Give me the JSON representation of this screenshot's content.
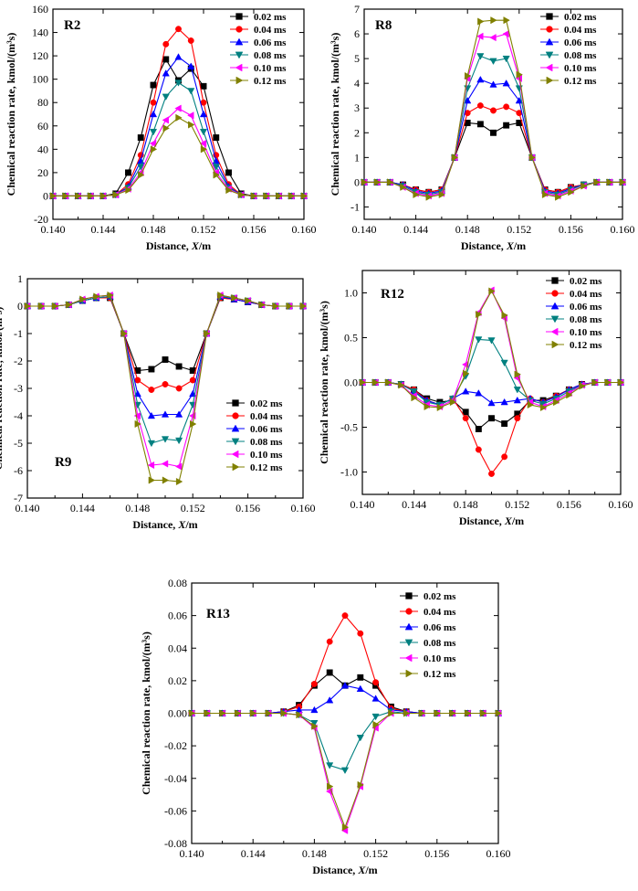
{
  "series_styles": [
    {
      "name": "0.02 ms",
      "color": "#000000",
      "marker": "square"
    },
    {
      "name": "0.04 ms",
      "color": "#ff0000",
      "marker": "circle"
    },
    {
      "name": "0.06 ms",
      "color": "#0000ff",
      "marker": "triangle-up"
    },
    {
      "name": "0.08 ms",
      "color": "#008080",
      "marker": "triangle-down"
    },
    {
      "name": "0.10 ms",
      "color": "#ff00ff",
      "marker": "triangle-left"
    },
    {
      "name": "0.12 ms",
      "color": "#808000",
      "marker": "triangle-right"
    }
  ],
  "chart_data": [
    {
      "id": "R2",
      "type": "line",
      "label": "R2",
      "xlabel_prefix": "Distance, ",
      "xlabel_var": "X",
      "xlabel_suffix": "/m",
      "ylabel": "Chemical reaction rate, kmol/(m³s)",
      "xlim": [
        0.14,
        0.16
      ],
      "ylim": [
        -20,
        160
      ],
      "xticks": [
        "0.140",
        "0.144",
        "0.148",
        "0.152",
        "0.156",
        "0.160"
      ],
      "yticks": [
        "-20",
        "0",
        "20",
        "40",
        "60",
        "80",
        "100",
        "120",
        "140",
        "160"
      ],
      "legend_position": "top-right",
      "x": [
        0.14,
        0.141,
        0.142,
        0.143,
        0.144,
        0.145,
        0.146,
        0.147,
        0.148,
        0.149,
        0.15,
        0.151,
        0.152,
        0.153,
        0.154,
        0.155,
        0.156,
        0.157,
        0.158,
        0.159,
        0.16
      ],
      "series": [
        {
          "name": "0.02 ms",
          "values": [
            0,
            0,
            0,
            0,
            0,
            2,
            20,
            50,
            95,
            117,
            99,
            109,
            94,
            50,
            20,
            2,
            0,
            0,
            0,
            0,
            0
          ]
        },
        {
          "name": "0.04 ms",
          "values": [
            0,
            0,
            0,
            0,
            0,
            1,
            10,
            35,
            80,
            130,
            143,
            133,
            80,
            35,
            10,
            1,
            0,
            0,
            0,
            0,
            0
          ]
        },
        {
          "name": "0.06 ms",
          "values": [
            0,
            0,
            0,
            0,
            0,
            1,
            8,
            30,
            70,
            105,
            119,
            111,
            70,
            30,
            8,
            1,
            0,
            0,
            0,
            0,
            0
          ]
        },
        {
          "name": "0.08 ms",
          "values": [
            0,
            0,
            0,
            0,
            0,
            1,
            7,
            25,
            55,
            85,
            97,
            90,
            55,
            25,
            7,
            1,
            0,
            0,
            0,
            0,
            0
          ]
        },
        {
          "name": "0.10 ms",
          "values": [
            0,
            0,
            0,
            0,
            0,
            1,
            6,
            20,
            45,
            65,
            75,
            69,
            45,
            20,
            6,
            1,
            0,
            0,
            0,
            0,
            0
          ]
        },
        {
          "name": "0.12 ms",
          "values": [
            0,
            0,
            0,
            0,
            0,
            1,
            5,
            18,
            40,
            58,
            67,
            61,
            40,
            18,
            5,
            1,
            0,
            0,
            0,
            0,
            0
          ]
        }
      ]
    },
    {
      "id": "R8",
      "type": "line",
      "label": "R8",
      "xlabel_prefix": "Distance, ",
      "xlabel_var": "X",
      "xlabel_suffix": "/m",
      "ylabel": "Chemical reaction rate, kmol/(m³s)",
      "xlim": [
        0.14,
        0.16
      ],
      "ylim": [
        -1.5,
        7
      ],
      "xticks": [
        "0.140",
        "0.144",
        "0.148",
        "0.152",
        "0.156",
        "0.160"
      ],
      "yticks": [
        "-1",
        "0",
        "1",
        "2",
        "3",
        "4",
        "5",
        "6",
        "7"
      ],
      "legend_position": "top-right",
      "x": [
        0.14,
        0.141,
        0.142,
        0.143,
        0.144,
        0.145,
        0.146,
        0.147,
        0.148,
        0.149,
        0.15,
        0.151,
        0.152,
        0.153,
        0.154,
        0.155,
        0.156,
        0.157,
        0.158,
        0.159,
        0.16
      ],
      "series": [
        {
          "name": "0.02 ms",
          "values": [
            0,
            0,
            0,
            -0.1,
            -0.3,
            -0.4,
            -0.3,
            1.0,
            2.4,
            2.35,
            2.0,
            2.3,
            2.4,
            1.0,
            -0.3,
            -0.4,
            -0.2,
            -0.1,
            0,
            0,
            0
          ]
        },
        {
          "name": "0.04 ms",
          "values": [
            0,
            0,
            0,
            -0.1,
            -0.3,
            -0.4,
            -0.3,
            1.0,
            2.8,
            3.1,
            2.9,
            3.05,
            2.8,
            1.0,
            -0.3,
            -0.4,
            -0.2,
            -0.1,
            0,
            0,
            0
          ]
        },
        {
          "name": "0.06 ms",
          "values": [
            0,
            0,
            0,
            -0.1,
            -0.35,
            -0.45,
            -0.35,
            1.0,
            3.3,
            4.15,
            3.95,
            4.0,
            3.3,
            1.0,
            -0.35,
            -0.45,
            -0.25,
            -0.1,
            0,
            0,
            0
          ]
        },
        {
          "name": "0.08 ms",
          "values": [
            0,
            0,
            0,
            -0.15,
            -0.4,
            -0.5,
            -0.4,
            1.0,
            3.8,
            5.1,
            4.9,
            5.0,
            3.8,
            1.0,
            -0.4,
            -0.5,
            -0.3,
            -0.1,
            0,
            0,
            0
          ]
        },
        {
          "name": "0.10 ms",
          "values": [
            0,
            0,
            0,
            -0.2,
            -0.45,
            -0.55,
            -0.45,
            1.0,
            4.2,
            5.9,
            5.85,
            6.0,
            4.2,
            1.0,
            -0.45,
            -0.55,
            -0.35,
            -0.15,
            0,
            0,
            0
          ]
        },
        {
          "name": "0.12 ms",
          "values": [
            0,
            0,
            0,
            -0.2,
            -0.5,
            -0.6,
            -0.5,
            1.0,
            4.3,
            6.5,
            6.55,
            6.55,
            4.35,
            1.0,
            -0.5,
            -0.6,
            -0.4,
            -0.15,
            0,
            0,
            0
          ]
        }
      ]
    },
    {
      "id": "R9",
      "type": "line",
      "label": "R9",
      "xlabel_prefix": "Distance, ",
      "xlabel_var": "X",
      "xlabel_suffix": "/m",
      "ylabel": "Chemical reaction rate, kmol/(m³s)",
      "xlim": [
        0.14,
        0.16
      ],
      "ylim": [
        -7,
        1
      ],
      "xticks": [
        "0.140",
        "0.144",
        "0.148",
        "0.152",
        "0.156",
        "0.160"
      ],
      "yticks": [
        "-7",
        "-6",
        "-5",
        "-4",
        "-3",
        "-2",
        "-1",
        "0",
        "1"
      ],
      "legend_position": "bottom-right",
      "x": [
        0.14,
        0.141,
        0.142,
        0.143,
        0.144,
        0.145,
        0.146,
        0.147,
        0.148,
        0.149,
        0.15,
        0.151,
        0.152,
        0.153,
        0.154,
        0.155,
        0.156,
        0.157,
        0.158,
        0.159,
        0.16
      ],
      "series": [
        {
          "name": "0.02 ms",
          "values": [
            0,
            0,
            0,
            0.05,
            0.2,
            0.3,
            0.3,
            -1.0,
            -2.35,
            -2.3,
            -1.95,
            -2.2,
            -2.35,
            -1.0,
            0.3,
            0.25,
            0.15,
            0.05,
            0,
            0,
            0
          ]
        },
        {
          "name": "0.04 ms",
          "values": [
            0,
            0,
            0,
            0.05,
            0.2,
            0.3,
            0.3,
            -1.0,
            -2.7,
            -3.05,
            -2.85,
            -3.0,
            -2.7,
            -1.0,
            0.3,
            0.25,
            0.15,
            0.05,
            0,
            0,
            0
          ]
        },
        {
          "name": "0.06 ms",
          "values": [
            0,
            0,
            0,
            0.05,
            0.2,
            0.3,
            0.35,
            -1.0,
            -3.2,
            -4.0,
            -3.95,
            -3.95,
            -3.2,
            -1.0,
            0.35,
            0.25,
            0.15,
            0.05,
            0,
            0,
            0
          ]
        },
        {
          "name": "0.08 ms",
          "values": [
            0,
            0,
            0,
            0.05,
            0.2,
            0.3,
            0.35,
            -1.0,
            -3.6,
            -5.0,
            -4.85,
            -4.9,
            -3.6,
            -1.0,
            0.35,
            0.3,
            0.2,
            0.05,
            0,
            0,
            0
          ]
        },
        {
          "name": "0.10 ms",
          "values": [
            0,
            0,
            0,
            0.05,
            0.25,
            0.35,
            0.4,
            -1.0,
            -4.0,
            -5.8,
            -5.75,
            -5.85,
            -4.0,
            -1.0,
            0.4,
            0.3,
            0.2,
            0.05,
            0,
            0,
            0
          ]
        },
        {
          "name": "0.12 ms",
          "values": [
            0,
            0,
            0,
            0.05,
            0.25,
            0.35,
            0.4,
            -1.0,
            -4.3,
            -6.35,
            -6.35,
            -6.4,
            -4.3,
            -1.0,
            0.4,
            0.3,
            0.2,
            0.05,
            0,
            0,
            0
          ]
        }
      ]
    },
    {
      "id": "R12",
      "type": "line",
      "label": "R12",
      "xlabel_prefix": "Distance, ",
      "xlabel_var": "X",
      "xlabel_suffix": "/m",
      "ylabel": "Chemical reaction rate, kmol/(m³s)",
      "xlim": [
        0.14,
        0.16
      ],
      "ylim": [
        -1.25,
        1.25
      ],
      "xticks": [
        "0.140",
        "0.144",
        "0.148",
        "0.152",
        "0.156",
        "0.160"
      ],
      "yticks": [
        "-1.0",
        "-0.5",
        "0.0",
        "0.5",
        "1.0"
      ],
      "legend_position": "top-right",
      "x": [
        0.14,
        0.141,
        0.142,
        0.143,
        0.144,
        0.145,
        0.146,
        0.147,
        0.148,
        0.149,
        0.15,
        0.151,
        0.152,
        0.153,
        0.154,
        0.155,
        0.156,
        0.157,
        0.158,
        0.159,
        0.16
      ],
      "series": [
        {
          "name": "0.02 ms",
          "values": [
            0,
            0,
            0,
            -0.02,
            -0.08,
            -0.18,
            -0.22,
            -0.2,
            -0.33,
            -0.52,
            -0.4,
            -0.46,
            -0.35,
            -0.2,
            -0.2,
            -0.15,
            -0.08,
            -0.02,
            0,
            0,
            0
          ]
        },
        {
          "name": "0.04 ms",
          "values": [
            0,
            0,
            0,
            -0.02,
            -0.08,
            -0.2,
            -0.25,
            -0.18,
            -0.4,
            -0.75,
            -1.02,
            -0.83,
            -0.4,
            -0.18,
            -0.22,
            -0.15,
            -0.08,
            -0.02,
            0,
            0,
            0
          ]
        },
        {
          "name": "0.06 ms",
          "values": [
            0,
            0,
            0,
            -0.02,
            -0.1,
            -0.2,
            -0.25,
            -0.18,
            -0.1,
            -0.12,
            -0.23,
            -0.22,
            -0.2,
            -0.18,
            -0.22,
            -0.16,
            -0.08,
            -0.02,
            0,
            0,
            0
          ]
        },
        {
          "name": "0.08 ms",
          "values": [
            0,
            0,
            0,
            -0.02,
            -0.1,
            -0.22,
            -0.25,
            -0.18,
            0.07,
            0.48,
            0.47,
            0.22,
            -0.08,
            -0.2,
            -0.24,
            -0.18,
            -0.1,
            -0.03,
            0,
            0,
            0
          ]
        },
        {
          "name": "0.10 ms",
          "values": [
            0,
            0,
            0,
            -0.03,
            -0.15,
            -0.25,
            -0.27,
            -0.2,
            0.2,
            0.78,
            1.03,
            0.72,
            0.05,
            -0.22,
            -0.27,
            -0.2,
            -0.12,
            -0.03,
            0,
            0,
            0
          ]
        },
        {
          "name": "0.12 ms",
          "values": [
            0,
            0,
            0,
            -0.03,
            -0.17,
            -0.27,
            -0.28,
            -0.22,
            0.1,
            0.76,
            1.02,
            0.75,
            0.09,
            -0.25,
            -0.28,
            -0.22,
            -0.14,
            -0.04,
            0,
            0,
            0
          ]
        }
      ]
    },
    {
      "id": "R13",
      "type": "line",
      "label": "R13",
      "xlabel_prefix": "Distance, ",
      "xlabel_var": "X",
      "xlabel_suffix": "/m",
      "ylabel": "Chemical reaction rate, kmol/(m³s)",
      "xlim": [
        0.14,
        0.16
      ],
      "ylim": [
        -0.08,
        0.08
      ],
      "xticks": [
        "0.140",
        "0.144",
        "0.148",
        "0.152",
        "0.156",
        "0.160"
      ],
      "yticks": [
        "-0.08",
        "-0.06",
        "-0.04",
        "-0.02",
        "0.00",
        "0.02",
        "0.04",
        "0.06",
        "0.08"
      ],
      "legend_position": "top-right",
      "x": [
        0.14,
        0.141,
        0.142,
        0.143,
        0.144,
        0.145,
        0.146,
        0.147,
        0.148,
        0.149,
        0.15,
        0.151,
        0.152,
        0.153,
        0.154,
        0.155,
        0.156,
        0.157,
        0.158,
        0.159,
        0.16
      ],
      "series": [
        {
          "name": "0.02 ms",
          "values": [
            0,
            0,
            0,
            0,
            0,
            0,
            0.001,
            0.005,
            0.017,
            0.025,
            0.017,
            0.022,
            0.017,
            0.004,
            0.001,
            0,
            0,
            0,
            0,
            0,
            0
          ]
        },
        {
          "name": "0.04 ms",
          "values": [
            0,
            0,
            0,
            0,
            0,
            0,
            0.001,
            0.004,
            0.018,
            0.044,
            0.06,
            0.049,
            0.019,
            0.003,
            0.001,
            0,
            0,
            0,
            0,
            0,
            0
          ]
        },
        {
          "name": "0.06 ms",
          "values": [
            0,
            0,
            0,
            0,
            0,
            0,
            0.001,
            0.002,
            0.002,
            0.008,
            0.017,
            0.015,
            0.009,
            0.002,
            0.001,
            0,
            0,
            0,
            0,
            0,
            0
          ]
        },
        {
          "name": "0.08 ms",
          "values": [
            0,
            0,
            0,
            0,
            0,
            0,
            0,
            -0.001,
            -0.006,
            -0.032,
            -0.035,
            -0.015,
            -0.002,
            0.001,
            0,
            0,
            0,
            0,
            0,
            0,
            0
          ]
        },
        {
          "name": "0.10 ms",
          "values": [
            0,
            0,
            0,
            0,
            0,
            0,
            0,
            -0.001,
            -0.009,
            -0.048,
            -0.072,
            -0.045,
            -0.009,
            0,
            0,
            0,
            0,
            0,
            0,
            0,
            0
          ]
        },
        {
          "name": "0.12 ms",
          "values": [
            0,
            0,
            0,
            0,
            0,
            0,
            0,
            -0.001,
            -0.008,
            -0.045,
            -0.07,
            -0.044,
            -0.007,
            0,
            0,
            0,
            0,
            0,
            0,
            0,
            0
          ]
        }
      ]
    }
  ]
}
